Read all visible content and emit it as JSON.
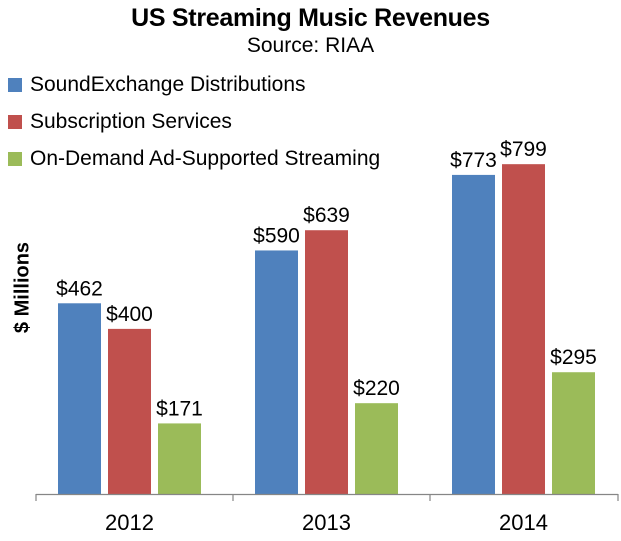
{
  "chart_data": {
    "type": "bar",
    "title": "US Streaming Music Revenues",
    "subtitle": "Source: RIAA",
    "ylabel": "$ Millions",
    "xlabel": "",
    "categories": [
      "2012",
      "2013",
      "2014"
    ],
    "series": [
      {
        "name": "SoundExchange Distributions",
        "color": "#4f81bd",
        "values": [
          462,
          590,
          773
        ],
        "labels": [
          "$462",
          "$590",
          "$773"
        ]
      },
      {
        "name": "Subscription Services",
        "color": "#c0504d",
        "values": [
          400,
          639,
          799
        ],
        "labels": [
          "$400",
          "$639",
          "$799"
        ]
      },
      {
        "name": "On-Demand Ad-Supported Streaming",
        "color": "#9bbb59",
        "values": [
          171,
          220,
          295
        ],
        "labels": [
          "$171",
          "$220",
          "$295"
        ]
      }
    ],
    "ylim": [
      0,
      850
    ],
    "grid": false,
    "legend_position": "top-left"
  }
}
